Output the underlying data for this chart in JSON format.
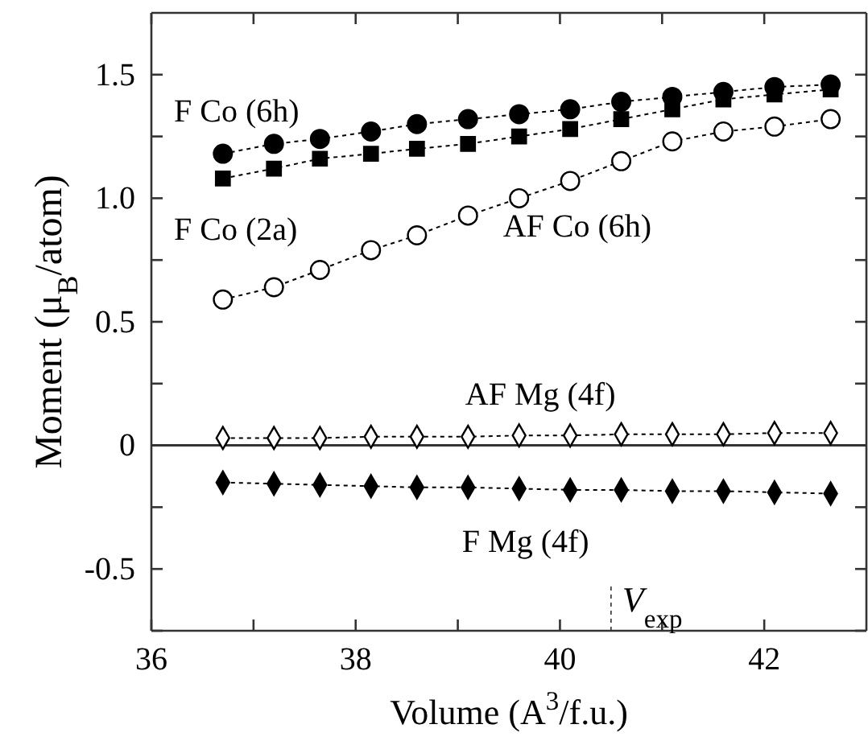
{
  "chart_data": {
    "type": "line",
    "xlabel": "Volume (A$^{3}$/f.u.)",
    "ylabel": "Moment (μ$_{B}$/atom)",
    "x": [
      36.7,
      37.2,
      37.65,
      38.15,
      38.6,
      39.1,
      39.6,
      40.1,
      40.6,
      41.1,
      41.6,
      42.1,
      42.65
    ],
    "xlim": [
      36,
      43
    ],
    "xticks": [
      36,
      {
        "value": 37,
        "label": null
      },
      38,
      {
        "value": 39,
        "label": null
      },
      40,
      {
        "value": 41,
        "label": null
      },
      42
    ],
    "ylim": [
      -0.75,
      1.75
    ],
    "yticks": [
      {
        "value": -0.75,
        "label": null
      },
      -0.5,
      {
        "value": -0.25,
        "label": null
      },
      0,
      {
        "value": 0.25,
        "label": null
      },
      0.5,
      {
        "value": 0.75,
        "label": null
      },
      {
        "value": 1,
        "label": "1.0"
      },
      {
        "value": 1.25,
        "label": null
      },
      1.5
    ],
    "line_style": "dotted",
    "grid": false,
    "series": [
      {
        "name": "F Co (6h)",
        "color": "#000000",
        "marker": "circle",
        "values": [
          1.18,
          1.22,
          1.24,
          1.27,
          1.3,
          1.32,
          1.34,
          1.36,
          1.39,
          1.41,
          1.43,
          1.45,
          1.46
        ]
      },
      {
        "name": "F Co (2a)",
        "color": "#000000",
        "marker": "square",
        "values": [
          1.08,
          1.12,
          1.16,
          1.18,
          1.2,
          1.22,
          1.25,
          1.28,
          1.32,
          1.36,
          1.4,
          1.42,
          1.44
        ]
      },
      {
        "name": "AF Co (6h)",
        "color": "#000000",
        "marker": "circle",
        "values": [
          0.59,
          0.64,
          0.71,
          0.79,
          0.85,
          0.93,
          1.0,
          1.07,
          1.15,
          1.23,
          1.27,
          1.29,
          1.32
        ]
      },
      {
        "name": "AF Mg (4f)",
        "color": "#000000",
        "marker": "diamond",
        "values": [
          0.03,
          0.03,
          0.03,
          0.035,
          0.035,
          0.035,
          0.04,
          0.04,
          0.045,
          0.045,
          0.045,
          0.05,
          0.05
        ]
      },
      {
        "name": "F Mg (4f)",
        "color": "#000000",
        "marker": "diamond",
        "values": [
          -0.15,
          -0.155,
          -0.16,
          -0.165,
          -0.17,
          -0.17,
          -0.175,
          -0.18,
          -0.18,
          -0.185,
          -0.185,
          -0.19,
          -0.195
        ]
      }
    ],
    "ref_lines": [
      {
        "axis": "y",
        "value": 0,
        "label": null,
        "line_style": "solid"
      },
      {
        "axis": "x",
        "value": 40.5,
        "label": "V$_{exp}$",
        "line_style": "dotted"
      }
    ]
  }
}
